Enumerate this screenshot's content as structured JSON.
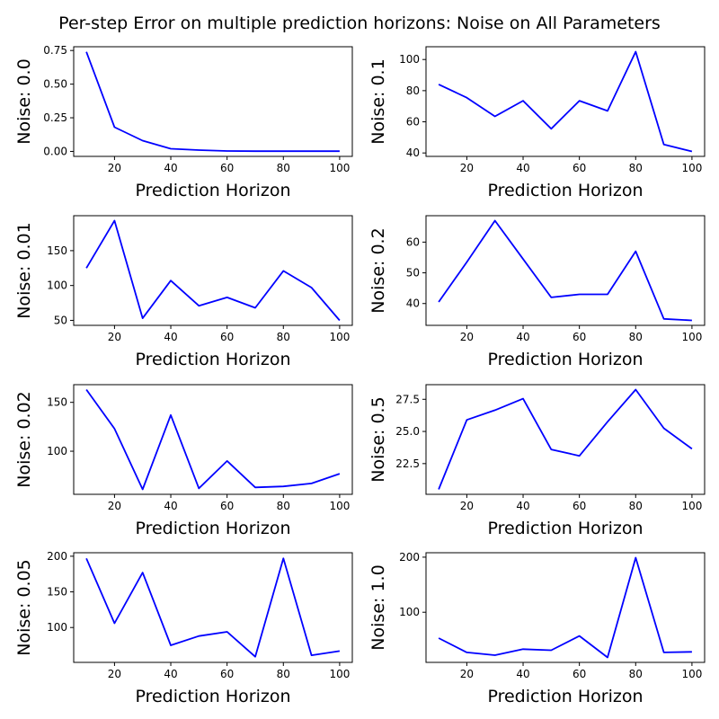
{
  "figure": {
    "title": "Per-step Error on multiple prediction horizons: Noise on All Parameters"
  },
  "chart_data": [
    {
      "type": "line",
      "ylabel": "Noise: 0.0",
      "xlabel": "Prediction Horizon",
      "series": [
        {
          "name": "error",
          "color": "#0000ff",
          "x": [
            10,
            20,
            30,
            40,
            50,
            60,
            70,
            80,
            90,
            100
          ],
          "y": [
            0.74,
            0.18,
            0.08,
            0.02,
            0.01,
            0.003,
            0.002,
            0.002,
            0.002,
            0.002
          ]
        }
      ],
      "xlim": [
        5.5,
        104.5
      ],
      "ylim": [
        -0.037,
        0.778
      ],
      "xticks": [
        20,
        40,
        60,
        80,
        100
      ],
      "xtick_labels": [
        "20",
        "40",
        "60",
        "80",
        "100"
      ],
      "yticks": [
        0,
        0.25,
        0.5,
        0.75
      ],
      "ytick_labels": [
        "0.00",
        "0.25",
        "0.50",
        "0.75"
      ]
    },
    {
      "type": "line",
      "ylabel": "Noise: 0.1",
      "xlabel": "Prediction Horizon",
      "series": [
        {
          "name": "error",
          "color": "#0000ff",
          "x": [
            10,
            20,
            30,
            40,
            50,
            60,
            70,
            80,
            90,
            100
          ],
          "y": [
            84,
            75.5,
            63.5,
            73.5,
            55.5,
            73.5,
            67,
            105,
            45.5,
            41
          ]
        }
      ],
      "xlim": [
        5.5,
        104.5
      ],
      "ylim": [
        37.8,
        108.2
      ],
      "xticks": [
        20,
        40,
        60,
        80,
        100
      ],
      "xtick_labels": [
        "20",
        "40",
        "60",
        "80",
        "100"
      ],
      "yticks": [
        40,
        60,
        80,
        100
      ],
      "ytick_labels": [
        "40",
        "60",
        "80",
        "100"
      ]
    },
    {
      "type": "line",
      "ylabel": "Noise: 0.01",
      "xlabel": "Prediction Horizon",
      "series": [
        {
          "name": "error",
          "color": "#0000ff",
          "x": [
            10,
            20,
            30,
            40,
            50,
            60,
            70,
            80,
            90,
            100
          ],
          "y": [
            125,
            193,
            53,
            107,
            71,
            83,
            68,
            121,
            97,
            50
          ]
        }
      ],
      "xlim": [
        5.5,
        104.5
      ],
      "ylim": [
        42.85,
        200.15
      ],
      "xticks": [
        20,
        40,
        60,
        80,
        100
      ],
      "xtick_labels": [
        "20",
        "40",
        "60",
        "80",
        "100"
      ],
      "yticks": [
        50,
        100,
        150
      ],
      "ytick_labels": [
        "50",
        "100",
        "150"
      ]
    },
    {
      "type": "line",
      "ylabel": "Noise: 0.2",
      "xlabel": "Prediction Horizon",
      "series": [
        {
          "name": "error",
          "color": "#0000ff",
          "x": [
            10,
            20,
            30,
            40,
            50,
            60,
            70,
            80,
            90,
            100
          ],
          "y": [
            40.5,
            53.5,
            67,
            54.5,
            42,
            43,
            43,
            57,
            35,
            34.5
          ]
        }
      ],
      "xlim": [
        5.5,
        104.5
      ],
      "ylim": [
        32.9,
        68.6
      ],
      "xticks": [
        20,
        40,
        60,
        80,
        100
      ],
      "xtick_labels": [
        "20",
        "40",
        "60",
        "80",
        "100"
      ],
      "yticks": [
        40,
        50,
        60
      ],
      "ytick_labels": [
        "40",
        "50",
        "60"
      ]
    },
    {
      "type": "line",
      "ylabel": "Noise: 0.02",
      "xlabel": "Prediction Horizon",
      "series": [
        {
          "name": "error",
          "color": "#0000ff",
          "x": [
            10,
            20,
            30,
            40,
            50,
            60,
            70,
            80,
            90,
            100
          ],
          "y": [
            163,
            123,
            61,
            137,
            62,
            90,
            63,
            64,
            67,
            77
          ]
        }
      ],
      "xlim": [
        5.5,
        104.5
      ],
      "ylim": [
        55.9,
        168.1
      ],
      "xticks": [
        20,
        40,
        60,
        80,
        100
      ],
      "xtick_labels": [
        "20",
        "40",
        "60",
        "80",
        "100"
      ],
      "yticks": [
        100,
        150
      ],
      "ytick_labels": [
        "100",
        "150"
      ]
    },
    {
      "type": "line",
      "ylabel": "Noise: 0.5",
      "xlabel": "Prediction Horizon",
      "series": [
        {
          "name": "error",
          "color": "#0000ff",
          "x": [
            10,
            20,
            30,
            40,
            50,
            60,
            70,
            80,
            90,
            100
          ],
          "y": [
            20.5,
            25.9,
            26.65,
            27.55,
            23.6,
            23.1,
            25.75,
            28.25,
            25.25,
            23.65
          ]
        }
      ],
      "xlim": [
        5.5,
        104.5
      ],
      "ylim": [
        20.1125,
        28.6375
      ],
      "xticks": [
        20,
        40,
        60,
        80,
        100
      ],
      "xtick_labels": [
        "20",
        "40",
        "60",
        "80",
        "100"
      ],
      "yticks": [
        22.5,
        25.0,
        27.5
      ],
      "ytick_labels": [
        "22.5",
        "25.0",
        "27.5"
      ]
    },
    {
      "type": "line",
      "ylabel": "Noise: 0.05",
      "xlabel": "Prediction Horizon",
      "series": [
        {
          "name": "error",
          "color": "#0000ff",
          "x": [
            10,
            20,
            30,
            40,
            50,
            60,
            70,
            80,
            90,
            100
          ],
          "y": [
            197,
            106,
            177,
            75,
            88,
            94,
            59,
            197,
            61,
            67
          ]
        }
      ],
      "xlim": [
        5.5,
        104.5
      ],
      "ylim": [
        51.1,
        204.9
      ],
      "xticks": [
        20,
        40,
        60,
        80,
        100
      ],
      "xtick_labels": [
        "20",
        "40",
        "60",
        "80",
        "100"
      ],
      "yticks": [
        100,
        150,
        200
      ],
      "ytick_labels": [
        "100",
        "150",
        "200"
      ]
    },
    {
      "type": "line",
      "ylabel": "Noise: 1.0",
      "xlabel": "Prediction Horizon",
      "series": [
        {
          "name": "error",
          "color": "#0000ff",
          "x": [
            10,
            20,
            30,
            40,
            50,
            60,
            70,
            80,
            90,
            100
          ],
          "y": [
            53,
            27,
            22,
            33,
            31,
            57,
            18,
            199,
            27,
            28
          ]
        }
      ],
      "xlim": [
        5.5,
        104.5
      ],
      "ylim": [
        8.95,
        208.05
      ],
      "xticks": [
        20,
        40,
        60,
        80,
        100
      ],
      "xtick_labels": [
        "20",
        "40",
        "60",
        "80",
        "100"
      ],
      "yticks": [
        100,
        200
      ],
      "ytick_labels": [
        "100",
        "200"
      ]
    }
  ]
}
